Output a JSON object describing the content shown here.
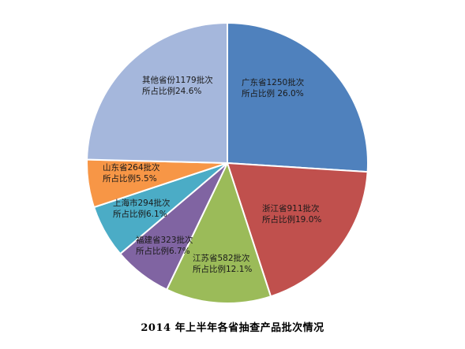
{
  "chart_data": {
    "type": "pie",
    "title": "2014 年上半年各省抽查产品批次情况",
    "slices": [
      {
        "province": "广东省",
        "batches": 1250,
        "percent": 26.0,
        "label_line1": "广东省1250批次",
        "label_line2": "所占比例 26.0%",
        "color": "#4f81bd"
      },
      {
        "province": "浙江省",
        "batches": 911,
        "percent": 19.0,
        "label_line1": "浙江省911批次",
        "label_line2": "所占比例19.0%",
        "color": "#c0504d"
      },
      {
        "province": "江苏省",
        "batches": 582,
        "percent": 12.1,
        "label_line1": "江苏省582批次",
        "label_line2": "所占比例12.1%",
        "color": "#9bbb59"
      },
      {
        "province": "福建省",
        "batches": 323,
        "percent": 6.7,
        "label_line1": "福建省323批次",
        "label_line2": "所占比例6.7%",
        "color": "#8064a2"
      },
      {
        "province": "上海市",
        "batches": 294,
        "percent": 6.1,
        "label_line1": "上海市294批次",
        "label_line2": "所占比例6.1%",
        "color": "#4bacc6"
      },
      {
        "province": "山东省",
        "batches": 264,
        "percent": 5.5,
        "label_line1": "山东省264批次",
        "label_line2": "所占比例5.5%",
        "color": "#f79646"
      },
      {
        "province": "其他省份",
        "batches": 1179,
        "percent": 24.6,
        "label_line1": "其他省份1179批次",
        "label_line2": "所占比例24.6%",
        "color": "#a5b7dc"
      }
    ],
    "start_angle_deg": 0,
    "direction": "clockwise",
    "legend": "none"
  }
}
